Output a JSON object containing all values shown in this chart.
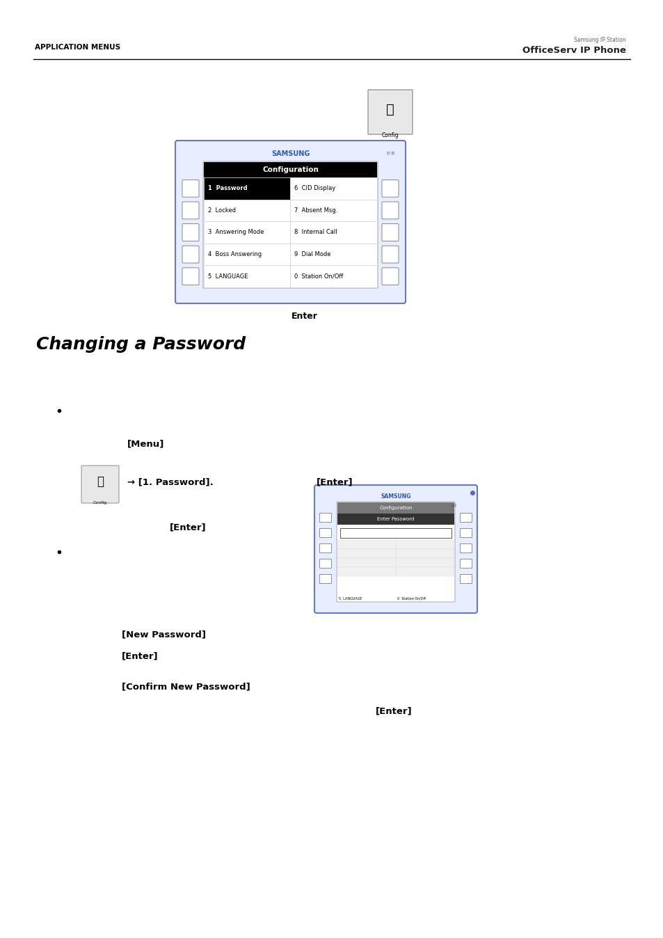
{
  "page_width": 9.54,
  "page_height": 13.48,
  "bg_color": "#ffffff",
  "header_left": "APPLICATION MENUS",
  "header_right_line1": "Samsung IP Station",
  "header_right_line2": "OfficeServ IP Phone",
  "section_title": "Changing a Password",
  "config_menu_items_left": [
    [
      "1",
      "Password"
    ],
    [
      "2",
      "Locked"
    ],
    [
      "3",
      "Answering Mode"
    ],
    [
      "4",
      "Boss Answering"
    ],
    [
      "5",
      "LANGUAGE"
    ]
  ],
  "config_menu_items_right": [
    [
      "6",
      "CID Display"
    ],
    [
      "7",
      "Absent Msg."
    ],
    [
      "8",
      "Internal Call"
    ],
    [
      "9",
      "Dial Mode"
    ],
    [
      "0",
      "Station On/Off"
    ]
  ],
  "config_title": "Configuration",
  "enter_label": "Enter",
  "menu_label": "[Menu]",
  "arrow_text": "→ [1. Password].",
  "enter_label2": "[Enter]",
  "enter_label3": "[Enter]",
  "new_password_label": "[New Password]",
  "enter_after_new": "[Enter]",
  "confirm_label": "[Confirm New Password]",
  "final_enter": "[Enter]",
  "samsung_blue": "#4466bb",
  "screen_border": "#8899cc"
}
